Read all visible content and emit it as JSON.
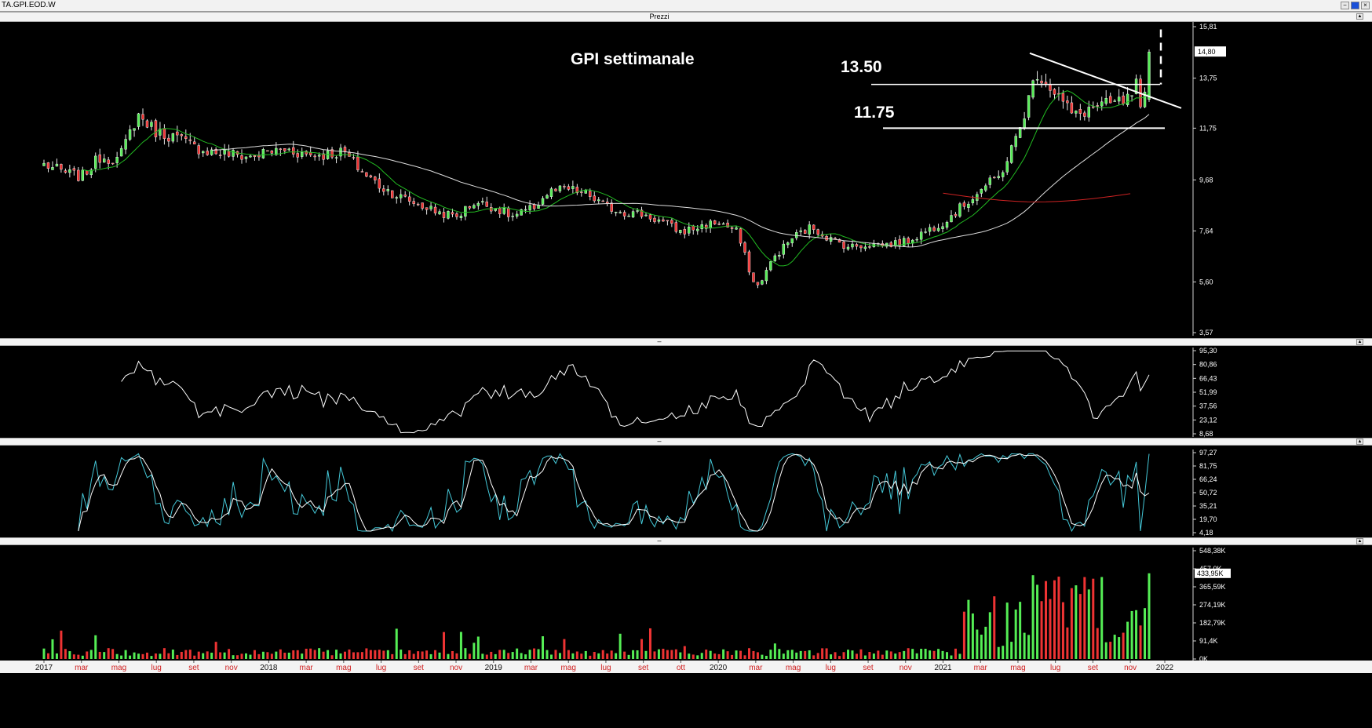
{
  "window": {
    "title": "TA.GPI.EOD.W",
    "controls": [
      "−",
      "□",
      "×"
    ]
  },
  "panels": {
    "price_title": "Prezzi",
    "indicator_dash": "–"
  },
  "annotations": {
    "chart_title": "GPI settimanale",
    "resistance_label": "13.50",
    "support_label": "11.75",
    "last_price_badge": "14,80",
    "volume_badge": "433,95K"
  },
  "colors": {
    "up": "#55ee55",
    "down": "#ee3333",
    "ma_short": "#22bb22",
    "ma_mid": "#dddddd",
    "ma_long": "#cc2222",
    "stoch_k": "#44c8d8",
    "stoch_d": "#ffffff"
  },
  "chart_data": [
    {
      "type": "candlestick",
      "panel": "price",
      "ylim": [
        3.57,
        15.81
      ],
      "y_ticks": [
        "15,81",
        "13,75",
        "11,75",
        "9,68",
        "7,64",
        "5,60",
        "3,57"
      ],
      "x_ticks": [
        "2017",
        "mar",
        "mag",
        "lug",
        "set",
        "nov",
        "2018",
        "mar",
        "mag",
        "lug",
        "set",
        "nov",
        "2019",
        "mar",
        "mag",
        "lug",
        "set",
        "ott",
        "2020",
        "mar",
        "mag",
        "lug",
        "set",
        "nov",
        "2021",
        "mar",
        "mag",
        "lug",
        "set",
        "nov",
        "2022"
      ],
      "x_tick_colors": [
        "w",
        "r",
        "r",
        "r",
        "r",
        "r",
        "w",
        "r",
        "r",
        "r",
        "r",
        "r",
        "w",
        "r",
        "r",
        "r",
        "r",
        "r",
        "w",
        "r",
        "r",
        "r",
        "r",
        "r",
        "w",
        "r",
        "r",
        "r",
        "r",
        "r",
        "w"
      ],
      "close_anchors": [
        [
          "2017-01",
          10.3
        ],
        [
          "2017-02",
          10.0
        ],
        [
          "2017-03",
          9.8
        ],
        [
          "2017-04",
          10.6
        ],
        [
          "2017-05",
          10.5
        ],
        [
          "2017-06",
          12.3
        ],
        [
          "2017-07",
          11.6
        ],
        [
          "2017-08",
          11.4
        ],
        [
          "2017-09",
          11.0
        ],
        [
          "2017-10",
          10.8
        ],
        [
          "2017-11",
          10.7
        ],
        [
          "2017-12",
          10.6
        ],
        [
          "2018-01",
          10.8
        ],
        [
          "2018-02",
          10.9
        ],
        [
          "2018-03",
          10.7
        ],
        [
          "2018-04",
          10.7
        ],
        [
          "2018-05",
          10.8
        ],
        [
          "2018-06",
          10.0
        ],
        [
          "2018-07",
          9.4
        ],
        [
          "2018-08",
          9.0
        ],
        [
          "2018-09",
          8.7
        ],
        [
          "2018-10",
          8.4
        ],
        [
          "2018-11",
          8.2
        ],
        [
          "2018-12",
          8.8
        ],
        [
          "2019-01",
          8.6
        ],
        [
          "2019-02",
          8.2
        ],
        [
          "2019-03",
          8.5
        ],
        [
          "2019-04",
          9.2
        ],
        [
          "2019-05",
          9.3
        ],
        [
          "2019-06",
          9.1
        ],
        [
          "2019-07",
          8.6
        ],
        [
          "2019-08",
          8.4
        ],
        [
          "2019-09",
          8.3
        ],
        [
          "2019-10",
          8.0
        ],
        [
          "2019-11",
          7.6
        ],
        [
          "2019-12",
          7.8
        ],
        [
          "2020-01",
          8.0
        ],
        [
          "2020-02",
          7.6
        ],
        [
          "2020-03",
          5.3
        ],
        [
          "2020-04",
          6.6
        ],
        [
          "2020-05",
          7.4
        ],
        [
          "2020-06",
          7.8
        ],
        [
          "2020-07",
          7.3
        ],
        [
          "2020-08",
          7.0
        ],
        [
          "2020-09",
          7.1
        ],
        [
          "2020-10",
          7.1
        ],
        [
          "2020-11",
          7.2
        ],
        [
          "2020-12",
          7.6
        ],
        [
          "2021-01",
          8.0
        ],
        [
          "2021-02",
          8.6
        ],
        [
          "2021-03",
          9.3
        ],
        [
          "2021-04",
          9.8
        ],
        [
          "2021-05",
          11.5
        ],
        [
          "2021-06",
          14.0
        ],
        [
          "2021-07",
          13.2
        ],
        [
          "2021-08",
          12.2
        ],
        [
          "2021-09",
          12.6
        ],
        [
          "2021-10",
          12.7
        ],
        [
          "2021-11",
          12.9
        ],
        [
          "2021-12",
          14.8
        ]
      ],
      "levels": [
        {
          "label": "13.50",
          "value": 13.5
        },
        {
          "label": "11.75",
          "value": 11.75
        }
      ],
      "trendline": {
        "from": [
          "2021-06",
          14.7
        ],
        "to": [
          "2022-01",
          12.5
        ]
      },
      "moving_averages": [
        {
          "color_key": "ma_short",
          "period_weeks": 10
        },
        {
          "color_key": "ma_mid",
          "period_weeks": 40
        },
        {
          "color_key": "ma_long",
          "from": "2021-01",
          "values_start_end": [
            9.1,
            9.1
          ]
        }
      ]
    },
    {
      "type": "line",
      "panel": "indicator_1",
      "ylim": [
        8.68,
        95.3
      ],
      "y_ticks": [
        "95,30",
        "80,86",
        "66,43",
        "51,99",
        "37,56",
        "23,12",
        "8,68"
      ]
    },
    {
      "type": "line",
      "panel": "stochastic",
      "ylim": [
        4.18,
        97.27
      ],
      "y_ticks": [
        "97,27",
        "81,75",
        "66,24",
        "50,72",
        "35,21",
        "19,70",
        "4,18"
      ],
      "series_colors": [
        "stoch_k",
        "stoch_d"
      ]
    },
    {
      "type": "bar",
      "panel": "volume",
      "ylim": [
        0,
        548380
      ],
      "y_ticks": [
        "548,38K",
        "457,0K",
        "365,59K",
        "274,19K",
        "182,79K",
        "91,4K",
        "0K"
      ]
    }
  ]
}
